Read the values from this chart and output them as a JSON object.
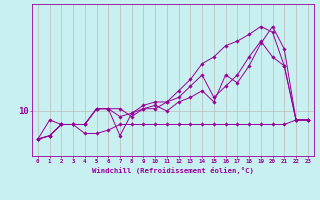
{
  "xlabel": "Windchill (Refroidissement éolien,°C)",
  "bg_color": "#c8f0f0",
  "line_color": "#990099",
  "grid_color": "#bbbbbb",
  "x_values": [
    0,
    1,
    2,
    3,
    4,
    5,
    6,
    7,
    8,
    9,
    10,
    11,
    12,
    13,
    14,
    15,
    16,
    17,
    18,
    19,
    20,
    21,
    22,
    23
  ],
  "series": [
    [
      7.5,
      9.2,
      8.8,
      8.8,
      8.0,
      8.0,
      8.3,
      8.8,
      8.8,
      8.8,
      8.8,
      8.8,
      8.8,
      8.8,
      8.8,
      8.8,
      8.8,
      8.8,
      8.8,
      8.8,
      8.8,
      8.8,
      9.2,
      9.2
    ],
    [
      7.5,
      7.8,
      8.8,
      8.8,
      8.8,
      10.2,
      10.2,
      10.2,
      9.5,
      10.2,
      10.5,
      10.0,
      10.8,
      11.2,
      11.8,
      10.8,
      13.2,
      12.5,
      14.0,
      16.0,
      17.5,
      15.5,
      9.2,
      9.2
    ],
    [
      7.5,
      7.8,
      8.8,
      8.8,
      8.8,
      10.2,
      10.2,
      7.8,
      9.8,
      10.5,
      10.8,
      10.8,
      11.2,
      12.2,
      13.2,
      11.2,
      12.2,
      13.2,
      14.8,
      16.2,
      14.8,
      14.0,
      9.2,
      9.2
    ],
    [
      7.5,
      7.8,
      8.8,
      8.8,
      8.8,
      10.2,
      10.2,
      9.5,
      9.8,
      10.2,
      10.2,
      10.8,
      11.8,
      12.8,
      14.2,
      14.8,
      15.8,
      16.2,
      16.8,
      17.5,
      17.0,
      14.0,
      9.2,
      9.2
    ]
  ],
  "ytick_value": 10,
  "ytick_label": "10",
  "ylim": [
    6.0,
    19.5
  ],
  "xlim": [
    -0.5,
    23.5
  ],
  "figsize": [
    3.2,
    2.0
  ],
  "dpi": 100
}
